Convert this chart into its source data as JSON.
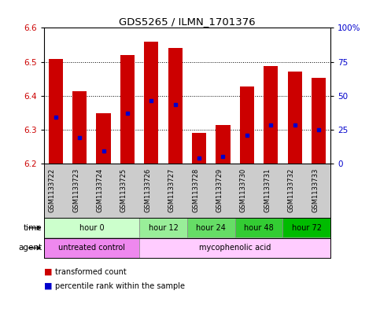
{
  "title": "GDS5265 / ILMN_1701376",
  "samples": [
    "GSM1133722",
    "GSM1133723",
    "GSM1133724",
    "GSM1133725",
    "GSM1133726",
    "GSM1133727",
    "GSM1133728",
    "GSM1133729",
    "GSM1133730",
    "GSM1133731",
    "GSM1133732",
    "GSM1133733"
  ],
  "bar_tops": [
    6.508,
    6.413,
    6.348,
    6.52,
    6.56,
    6.54,
    6.292,
    6.315,
    6.428,
    6.488,
    6.472,
    6.452
  ],
  "bar_bottom": 6.2,
  "percentile_values": [
    6.338,
    6.278,
    6.237,
    6.348,
    6.385,
    6.375,
    6.218,
    6.222,
    6.285,
    6.315,
    6.315,
    6.3
  ],
  "ylim_left": [
    6.2,
    6.6
  ],
  "ylim_right": [
    0,
    100
  ],
  "yticks_left": [
    6.2,
    6.3,
    6.4,
    6.5,
    6.6
  ],
  "yticks_right": [
    0,
    25,
    50,
    75,
    100
  ],
  "ytick_labels_right": [
    "0",
    "25",
    "50",
    "75",
    "100%"
  ],
  "bar_color": "#cc0000",
  "percentile_color": "#0000cc",
  "time_group_colors": {
    "hour 0": "#ccffcc",
    "hour 12": "#99ee99",
    "hour 24": "#66dd66",
    "hour 48": "#33cc33",
    "hour 72": "#00bb00"
  },
  "time_groups": [
    {
      "label": "hour 0",
      "start": 0,
      "end": 3
    },
    {
      "label": "hour 12",
      "start": 4,
      "end": 5
    },
    {
      "label": "hour 24",
      "start": 6,
      "end": 7
    },
    {
      "label": "hour 48",
      "start": 8,
      "end": 9
    },
    {
      "label": "hour 72",
      "start": 10,
      "end": 11
    }
  ],
  "agent_groups": [
    {
      "label": "untreated control",
      "start": 0,
      "end": 3,
      "color": "#ee88ee"
    },
    {
      "label": "mycophenolic acid",
      "start": 4,
      "end": 11,
      "color": "#ffccff"
    }
  ],
  "bg_color": "#ffffff",
  "tick_label_color_left": "#cc0000",
  "tick_label_color_right": "#0000cc",
  "xtick_bg_color": "#cccccc"
}
